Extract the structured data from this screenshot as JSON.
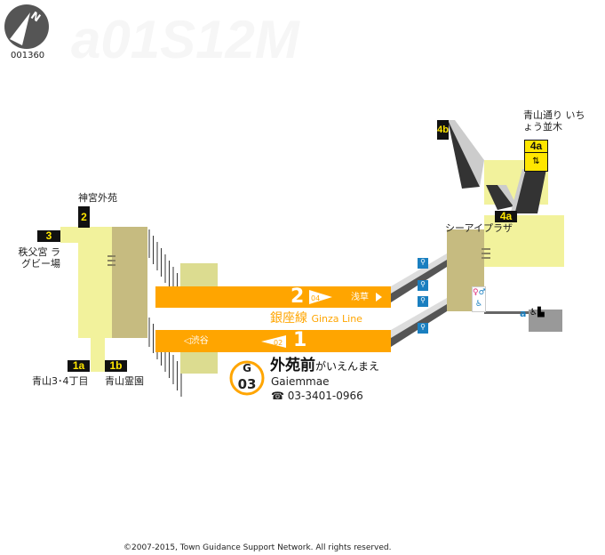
{
  "compass": {
    "label": "N",
    "code": "001360"
  },
  "colors": {
    "line": "#ffa500",
    "concourse": "#f2f29c",
    "concourse_dark": "#c6bb80",
    "platform": "#dcdc90",
    "exit_bg": "#111111",
    "exit_text": "#ffe600"
  },
  "exits": [
    {
      "id": "2",
      "dest": "神宮外苑"
    },
    {
      "id": "3",
      "dest": "秩父宮 ラグビー場"
    },
    {
      "id": "1a",
      "dest": "青山3･4丁目"
    },
    {
      "id": "1b",
      "dest": "青山霊園"
    },
    {
      "id": "4b",
      "dest": ""
    },
    {
      "id": "4a",
      "dest": "青山通り いちょう並木"
    },
    {
      "id": "4a_lower",
      "label": "4a",
      "dest": "シーアイプラザ"
    }
  ],
  "platforms": {
    "track2": {
      "number": "2",
      "code": "04",
      "direction": "浅草"
    },
    "track1": {
      "number": "1",
      "code": "02",
      "direction": "渋谷"
    },
    "line_name_jp": "銀座線",
    "line_name_en": "Ginza Line"
  },
  "station": {
    "badge_letter": "G",
    "badge_number": "03",
    "name_jp": "外苑前",
    "name_kana": "がいえんまえ",
    "name_en": "Gaiemmae",
    "phone_icon": "☎",
    "phone": "03-3401-0966"
  },
  "facilities": {
    "elevator_label": "a",
    "icons": [
      "restroom-icon",
      "accessible-icon",
      "escalator-icon",
      "elevator-icon",
      "wheelchair-icon"
    ]
  },
  "footer": {
    "copyright": "©2007-2015, Town Guidance Support Network. All rights reserved."
  }
}
